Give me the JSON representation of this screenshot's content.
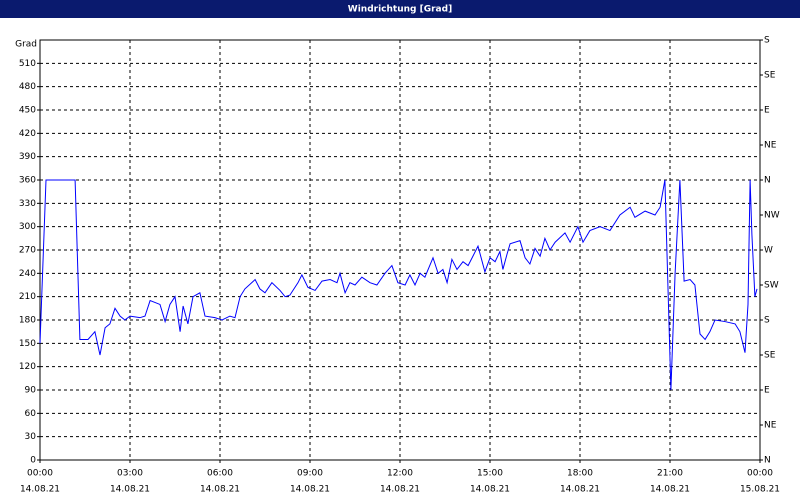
{
  "chart_data": {
    "type": "line",
    "title": "Windrichtung [Grad]",
    "y_label": "Grad",
    "color": "#0000ff",
    "grid": true,
    "xlim": [
      0,
      24
    ],
    "ylim": [
      0,
      540
    ],
    "y2lim": [
      0,
      540
    ],
    "xticks": [
      {
        "value": 0,
        "label": "00:00"
      },
      {
        "value": 3,
        "label": "03:00"
      },
      {
        "value": 6,
        "label": "06:00"
      },
      {
        "value": 9,
        "label": "09:00"
      },
      {
        "value": 12,
        "label": "12:00"
      },
      {
        "value": 15,
        "label": "15:00"
      },
      {
        "value": 18,
        "label": "18:00"
      },
      {
        "value": 21,
        "label": "21:00"
      },
      {
        "value": 24,
        "label": "00:00"
      }
    ],
    "xtick_dates": [
      "14.08.21",
      "14.08.21",
      "14.08.21",
      "14.08.21",
      "14.08.21",
      "14.08.21",
      "14.08.21",
      "14.08.21",
      "15.08.21"
    ],
    "yticks": [
      0,
      30,
      60,
      90,
      120,
      150,
      180,
      210,
      240,
      270,
      300,
      330,
      360,
      390,
      420,
      450,
      480,
      510
    ],
    "y2ticks": [
      {
        "value": 0,
        "label": "N"
      },
      {
        "value": 45,
        "label": "NE"
      },
      {
        "value": 90,
        "label": "E"
      },
      {
        "value": 135,
        "label": "SE"
      },
      {
        "value": 180,
        "label": "S"
      },
      {
        "value": 225,
        "label": "SW"
      },
      {
        "value": 270,
        "label": "W"
      },
      {
        "value": 315,
        "label": "NW"
      },
      {
        "value": 360,
        "label": "N"
      },
      {
        "value": 405,
        "label": "NE"
      },
      {
        "value": 450,
        "label": "E"
      },
      {
        "value": 495,
        "label": "SE"
      },
      {
        "value": 540,
        "label": "S"
      }
    ],
    "x": [
      0,
      0.2,
      1.17,
      1.33,
      1.6,
      1.83,
      2,
      2.17,
      2.33,
      2.5,
      2.67,
      2.83,
      3,
      3.33,
      3.5,
      3.67,
      4,
      4.17,
      4.33,
      4.5,
      4.67,
      4.77,
      4.93,
      5.1,
      5.33,
      5.5,
      5.83,
      6.07,
      6.33,
      6.5,
      6.67,
      6.83,
      7.17,
      7.33,
      7.5,
      7.73,
      8,
      8.17,
      8.33,
      8.6,
      8.73,
      8.93,
      9.17,
      9.4,
      9.67,
      9.9,
      10,
      10.17,
      10.33,
      10.5,
      10.73,
      11,
      11.23,
      11.5,
      11.73,
      11.93,
      12.17,
      12.33,
      12.5,
      12.67,
      12.83,
      13.1,
      13.27,
      13.43,
      13.57,
      13.73,
      13.9,
      14.1,
      14.27,
      14.43,
      14.6,
      14.83,
      15,
      15.17,
      15.33,
      15.43,
      15.57,
      15.67,
      16,
      16.17,
      16.33,
      16.5,
      16.67,
      16.83,
      17,
      17.17,
      17.5,
      17.67,
      17.93,
      18.1,
      18.33,
      18.67,
      19,
      19.33,
      19.67,
      19.83,
      20.17,
      20.5,
      20.67,
      20.83,
      21.03,
      21.17,
      21.33,
      21.47,
      21.67,
      21.83,
      22,
      22.17,
      22.33,
      22.5,
      22.83,
      23.17,
      23.33,
      23.5,
      23.6,
      23.67,
      23.73,
      23.83,
      23.9
    ],
    "values": [
      150,
      360,
      360,
      155,
      155,
      165,
      135,
      170,
      175,
      195,
      185,
      180,
      185,
      183,
      185,
      205,
      200,
      178,
      200,
      210,
      165,
      198,
      175,
      210,
      215,
      185,
      183,
      180,
      185,
      183,
      210,
      220,
      232,
      220,
      215,
      228,
      218,
      210,
      212,
      228,
      238,
      222,
      218,
      230,
      232,
      228,
      240,
      215,
      228,
      225,
      235,
      228,
      225,
      240,
      250,
      228,
      225,
      238,
      225,
      240,
      235,
      260,
      240,
      245,
      228,
      258,
      245,
      255,
      250,
      262,
      275,
      242,
      260,
      255,
      268,
      245,
      265,
      278,
      282,
      260,
      252,
      272,
      262,
      285,
      270,
      280,
      292,
      280,
      300,
      280,
      295,
      300,
      295,
      315,
      325,
      312,
      320,
      315,
      325,
      360,
      90,
      240,
      360,
      230,
      232,
      225,
      162,
      155,
      165,
      180,
      178,
      175,
      165,
      138,
      200,
      360,
      290,
      210,
      220
    ]
  }
}
